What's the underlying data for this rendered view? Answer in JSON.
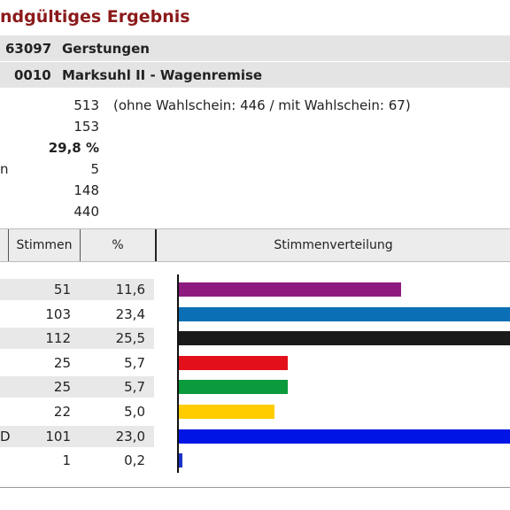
{
  "title": "ndgültiges Ergebnis",
  "header": {
    "row1": {
      "code": "63097",
      "name": "Gerstungen"
    },
    "row2": {
      "code": "0010",
      "name": "Marksuhl II - Wagenremise"
    }
  },
  "stats": [
    {
      "label": "",
      "value": "513",
      "note": "(ohne Wahlschein: 446 / mit Wahlschein: 67)",
      "bold": false
    },
    {
      "label": "",
      "value": "153",
      "note": "",
      "bold": false
    },
    {
      "label": "",
      "value": "29,8 %",
      "note": "",
      "bold": true
    },
    {
      "label": "n",
      "value": "5",
      "note": "",
      "bold": false
    },
    {
      "label": "",
      "value": "148",
      "note": "",
      "bold": false
    },
    {
      "label": "",
      "value": "440",
      "note": "",
      "bold": false
    }
  ],
  "table": {
    "columns": [
      "Stimmen",
      "%",
      "Stimmenverteilung"
    ],
    "rows": [
      {
        "label": "",
        "votes": "51",
        "pct": "11,6",
        "pct_value": 11.6,
        "color": "#8e1c7e"
      },
      {
        "label": "",
        "votes": "103",
        "pct": "23,4",
        "pct_value": 23.4,
        "color": "#0a6fb5"
      },
      {
        "label": "",
        "votes": "112",
        "pct": "25,5",
        "pct_value": 25.5,
        "color": "#1a1a1a"
      },
      {
        "label": "",
        "votes": "25",
        "pct": "5,7",
        "pct_value": 5.7,
        "color": "#e3101c"
      },
      {
        "label": "",
        "votes": "25",
        "pct": "5,7",
        "pct_value": 5.7,
        "color": "#0b9a3c"
      },
      {
        "label": "",
        "votes": "22",
        "pct": "5,0",
        "pct_value": 5.0,
        "color": "#ffcc00"
      },
      {
        "label": "D",
        "votes": "101",
        "pct": "23,0",
        "pct_value": 23.0,
        "color": "#0014e6"
      },
      {
        "label": "",
        "votes": "1",
        "pct": "0,2",
        "pct_value": 0.2,
        "color": "#1b33c9"
      }
    ]
  }
}
